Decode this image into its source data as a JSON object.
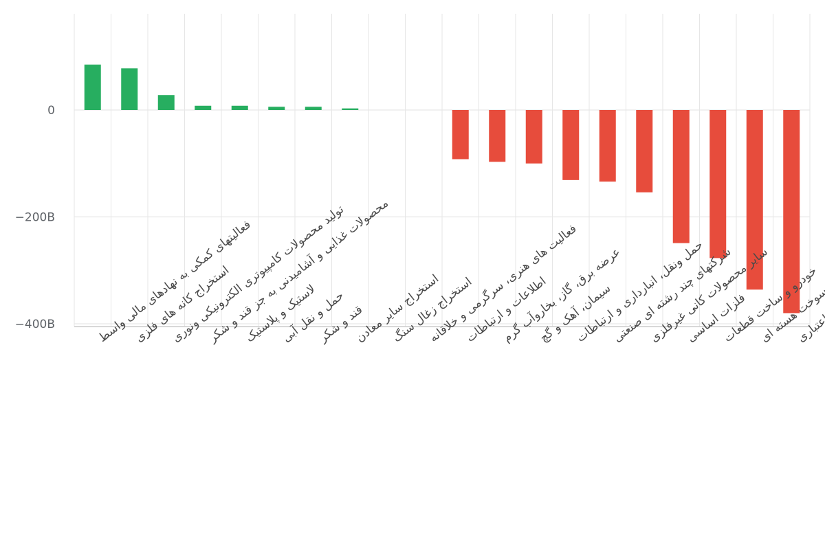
{
  "chart_data": {
    "type": "bar",
    "title": "",
    "xlabel": "",
    "ylabel": "",
    "ylim": [
      -400,
      130
    ],
    "y_ticks": [
      {
        "value": 0,
        "label": "0"
      },
      {
        "value": -200,
        "label": "−200B"
      },
      {
        "value": -400,
        "label": "−400B"
      }
    ],
    "grid": true,
    "legend": "none",
    "colors": {
      "positive": "#27ae60",
      "negative": "#e74c3c",
      "grid": "#e6e6e6",
      "axis": "#cccccc"
    },
    "categories": [
      "فعالیتهای کمکی به نهادهای مالی واسط",
      "استخراج کانه های فلزی",
      "تولید محصولات کامپیوتری الکترونیکی ونوری",
      "محصولات غذایی و آشامیدنی به جز قند و شکر",
      "لاستیک و پلاستیک",
      "حمل و نقل آبی",
      "قند و شکر",
      "استخراج سایر معادن",
      "استخراج زغال سنگ",
      "فعالیت های هنری، سرگرمی و خلاقانه",
      "اطلاعات و ارتباطات",
      "عرضه برق، گاز، بخاروآب گرم",
      "سیمان، آهک و گچ",
      "حمل ونقل، انبارداری و ارتباطات",
      "شرکتهای چند رشته ای صنعتی",
      "سایر محصولات کانی غیرفلزی",
      "فلزات اساسی",
      "خودرو و ساخت قطعات",
      "فراورده های نفتی، کک و سوخت هسته ای",
      "بانکها و موسسات اعتباری"
    ],
    "values": [
      85,
      78,
      28,
      8,
      8,
      6,
      6,
      3,
      0,
      0,
      -92,
      -97,
      -100,
      -131,
      -134,
      -154,
      -249,
      -277,
      -336,
      -380
    ]
  }
}
